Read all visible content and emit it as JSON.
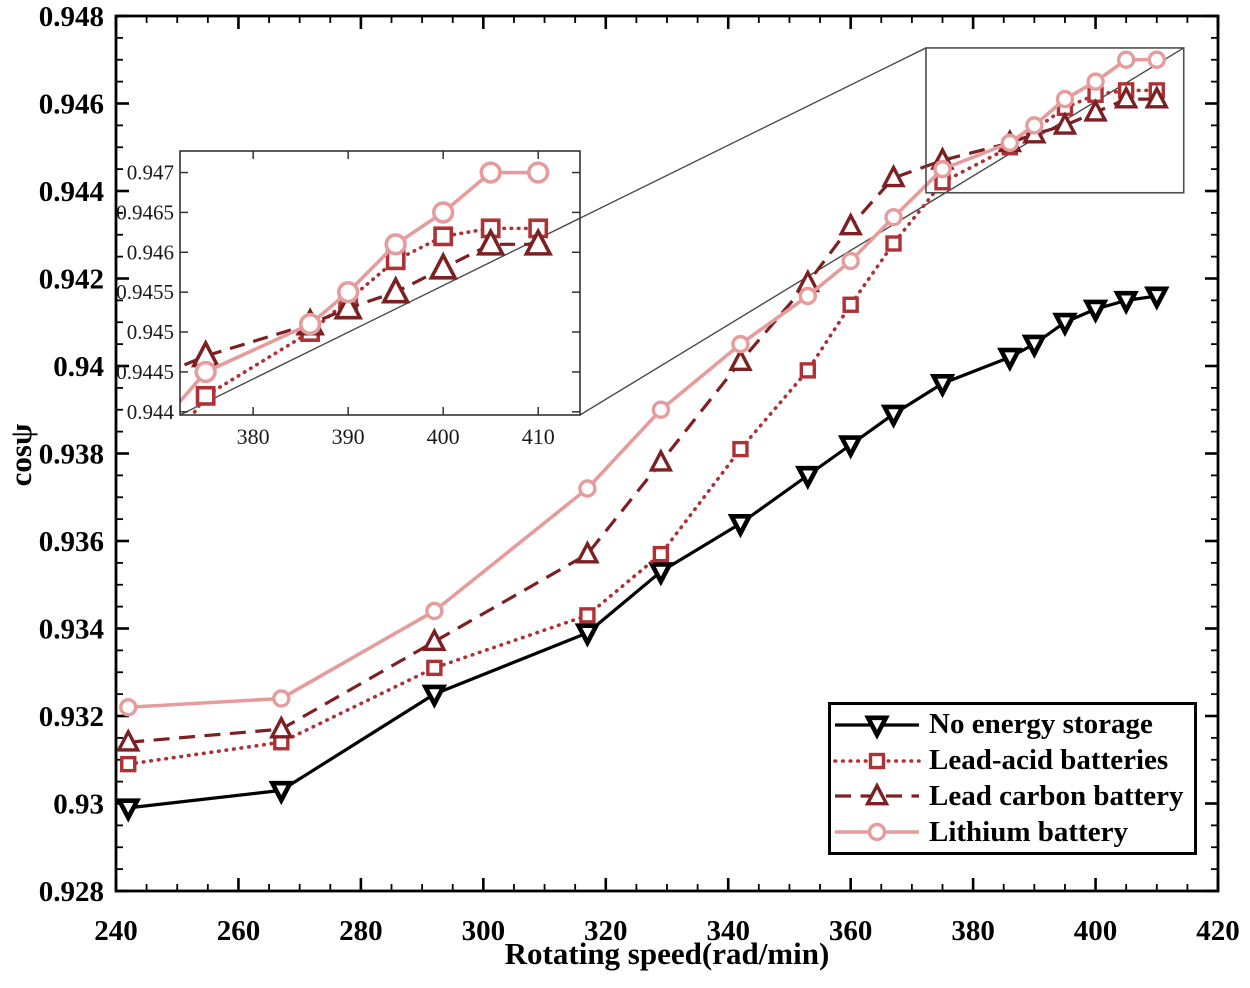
{
  "figure": {
    "x_axis": {
      "label": "Rotating speed(rad/min)",
      "min": 240,
      "max": 420,
      "major_ticks": [
        240,
        260,
        280,
        300,
        320,
        340,
        360,
        380,
        400,
        420
      ],
      "tick_labels": [
        "240",
        "260",
        "280",
        "300",
        "320",
        "340",
        "360",
        "380",
        "400",
        "420"
      ],
      "minor_step": 5
    },
    "y_axis": {
      "label": "cosψ",
      "min": 0.928,
      "max": 0.948,
      "major_ticks": [
        0.928,
        0.93,
        0.932,
        0.934,
        0.936,
        0.938,
        0.94,
        0.942,
        0.944,
        0.946,
        0.948
      ],
      "tick_labels": [
        "0.928",
        "0.93",
        "0.932",
        "0.934",
        "0.936",
        "0.938",
        "0.94",
        "0.942",
        "0.944",
        "0.946",
        "0.948"
      ],
      "minor_step": 0.0005
    }
  },
  "chart_data": {
    "type": "line",
    "title": "",
    "xlabel": "Rotating speed(rad/min)",
    "ylabel": "cosψ",
    "xlim": [
      240,
      420
    ],
    "ylim": [
      0.928,
      0.948
    ],
    "grid": false,
    "legend_position": "lower-right",
    "x": [
      242,
      267,
      292,
      317,
      329,
      342,
      353,
      360,
      367,
      375,
      386,
      390,
      395,
      400,
      405,
      410
    ],
    "series": [
      {
        "name": "No energy storage",
        "color": "#000000",
        "line_style": "solid",
        "marker": "triangle-down",
        "values": [
          0.9299,
          0.9303,
          0.9325,
          0.9339,
          0.9353,
          0.9364,
          0.9375,
          0.9382,
          0.9389,
          0.9396,
          0.9402,
          0.9405,
          0.941,
          0.9413,
          0.9415,
          0.9416
        ]
      },
      {
        "name": "Lead-acid batteries",
        "color": "#AD3235",
        "line_style": "dotted",
        "marker": "square",
        "values": [
          0.9309,
          0.9314,
          0.9331,
          0.9343,
          0.9357,
          0.9381,
          0.9399,
          0.9414,
          0.9428,
          0.9442,
          0.945,
          0.9454,
          0.9459,
          0.9462,
          0.9463,
          0.9463
        ]
      },
      {
        "name": "Lead carbon battery",
        "color": "#7C2123",
        "line_style": "dashed",
        "marker": "triangle-up",
        "values": [
          0.9314,
          0.9317,
          0.9337,
          0.9357,
          0.9378,
          0.9401,
          0.9419,
          0.9432,
          0.9443,
          0.9447,
          0.9451,
          0.9453,
          0.9455,
          0.9458,
          0.9461,
          0.9461
        ]
      },
      {
        "name": "Lithium battery",
        "color": "#E59C9C",
        "line_style": "solid",
        "marker": "circle",
        "values": [
          0.9322,
          0.9324,
          0.9344,
          0.9372,
          0.939,
          0.9405,
          0.9416,
          0.9424,
          0.9434,
          0.9445,
          0.9451,
          0.9455,
          0.9461,
          0.9465,
          0.947,
          0.947
        ]
      }
    ],
    "inset": {
      "x_range": [
        372.3,
        414.4
      ],
      "y_range": [
        0.94396,
        0.94727
      ],
      "x_major_ticks": [
        380,
        390,
        400,
        410
      ],
      "x_tick_labels": [
        "380",
        "390",
        "400",
        "410"
      ],
      "y_major_ticks": [
        0.944,
        0.9445,
        0.945,
        0.9455,
        0.946,
        0.9465,
        0.947
      ],
      "y_tick_labels": [
        "0.944",
        "0.9445",
        "0.945",
        "0.9455",
        "0.946",
        "0.9465",
        "0.947"
      ],
      "series_included": [
        "Lead-acid batteries",
        "Lead carbon battery",
        "Lithium battery"
      ]
    }
  }
}
